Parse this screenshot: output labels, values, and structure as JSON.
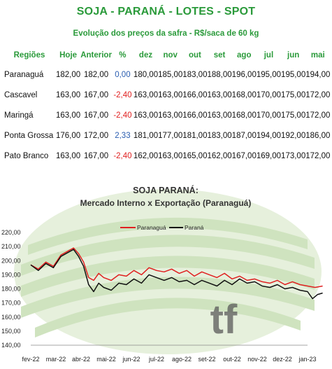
{
  "header": {
    "title": "SOJA - PARANÁ - LOTES - SPOT",
    "subtitle": "Evolução dos preços da safra - R$/saca de 60 kg"
  },
  "table": {
    "columns": [
      "Regiões",
      "Hoje",
      "Anterior",
      "%",
      "dez",
      "nov",
      "out",
      "set",
      "ago",
      "jul",
      "jun",
      "mai"
    ],
    "rows": [
      {
        "regiao": "Paranaguá",
        "hoje": "182,00",
        "anterior": "182,00",
        "pct": "0,00",
        "dez": "180,00",
        "nov": "185,00",
        "out": "183,00",
        "set": "188,00",
        "ago": "196,00",
        "jul": "195,00",
        "jun": "195,00",
        "mai": "194,00"
      },
      {
        "regiao": "Cascavel",
        "hoje": "163,00",
        "anterior": "167,00",
        "pct": "-2,40",
        "dez": "163,00",
        "nov": "163,00",
        "out": "166,00",
        "set": "163,00",
        "ago": "168,00",
        "jul": "170,00",
        "jun": "175,00",
        "mai": "172,00"
      },
      {
        "regiao": "Maringá",
        "hoje": "163,00",
        "anterior": "167,00",
        "pct": "-2,40",
        "dez": "163,00",
        "nov": "163,00",
        "out": "166,00",
        "set": "163,00",
        "ago": "168,00",
        "jul": "170,00",
        "jun": "175,00",
        "mai": "172,00"
      },
      {
        "regiao": "Ponta Grossa",
        "hoje": "176,00",
        "anterior": "172,00",
        "pct": "2,33",
        "dez": "181,00",
        "nov": "177,00",
        "out": "181,00",
        "set": "183,00",
        "ago": "187,00",
        "jul": "194,00",
        "jun": "192,00",
        "mai": "186,00"
      },
      {
        "regiao": "Pato Branco",
        "hoje": "163,00",
        "anterior": "167,00",
        "pct": "-2,40",
        "dez": "162,00",
        "nov": "163,00",
        "out": "165,00",
        "set": "162,00",
        "ago": "167,00",
        "jul": "169,00",
        "jun": "173,00",
        "mai": "172,00"
      }
    ]
  },
  "colors": {
    "green": "#2a9a3a",
    "negative": "#e02020",
    "positive": "#2a5db0",
    "series_paranagua": "#e02020",
    "series_parana": "#111111",
    "watermark": "#cfe3bf"
  },
  "chart_data": {
    "type": "line",
    "title": "SOJA PARANÁ:",
    "subtitle": "Mercado Interno x Exportação (Paranaguá)",
    "ylim": [
      140,
      220
    ],
    "yticks": [
      "140,00",
      "150,00",
      "160,00",
      "170,00",
      "180,00",
      "190,00",
      "200,00",
      "210,00",
      "220,00"
    ],
    "xticks": [
      "fev-22",
      "mar-22",
      "abr-22",
      "mai-22",
      "jun-22",
      "jul-22",
      "ago-22",
      "set-22",
      "out-22",
      "nov-22",
      "dez-22",
      "jan-23"
    ],
    "legend_position": "top",
    "watermark_text": "tf",
    "series": [
      {
        "name": "Paranaguá",
        "points": [
          [
            0,
            197
          ],
          [
            0.3,
            194
          ],
          [
            0.6,
            199
          ],
          [
            0.9,
            196
          ],
          [
            1.2,
            204
          ],
          [
            1.5,
            207
          ],
          [
            1.7,
            209
          ],
          [
            1.9,
            205
          ],
          [
            2.1,
            199
          ],
          [
            2.3,
            188
          ],
          [
            2.5,
            186
          ],
          [
            2.7,
            191
          ],
          [
            2.9,
            188
          ],
          [
            3.2,
            186
          ],
          [
            3.5,
            190
          ],
          [
            3.8,
            189
          ],
          [
            4.1,
            193
          ],
          [
            4.4,
            190
          ],
          [
            4.7,
            195
          ],
          [
            5.0,
            193
          ],
          [
            5.3,
            192
          ],
          [
            5.6,
            194
          ],
          [
            5.9,
            191
          ],
          [
            6.2,
            193
          ],
          [
            6.5,
            189
          ],
          [
            6.8,
            192
          ],
          [
            7.1,
            190
          ],
          [
            7.4,
            188
          ],
          [
            7.7,
            191
          ],
          [
            8.0,
            187
          ],
          [
            8.3,
            189
          ],
          [
            8.6,
            186
          ],
          [
            8.9,
            187
          ],
          [
            9.2,
            185
          ],
          [
            9.5,
            184
          ],
          [
            9.8,
            186
          ],
          [
            10.1,
            183
          ],
          [
            10.4,
            185
          ],
          [
            10.7,
            183
          ],
          [
            11.0,
            182
          ],
          [
            11.3,
            181
          ],
          [
            11.6,
            182
          ]
        ]
      },
      {
        "name": "Paraná",
        "points": [
          [
            0,
            197
          ],
          [
            0.3,
            193
          ],
          [
            0.6,
            198
          ],
          [
            0.9,
            195
          ],
          [
            1.2,
            203
          ],
          [
            1.5,
            206
          ],
          [
            1.7,
            208
          ],
          [
            1.9,
            203
          ],
          [
            2.1,
            196
          ],
          [
            2.3,
            183
          ],
          [
            2.5,
            178
          ],
          [
            2.7,
            184
          ],
          [
            2.9,
            181
          ],
          [
            3.2,
            179
          ],
          [
            3.5,
            184
          ],
          [
            3.8,
            183
          ],
          [
            4.1,
            187
          ],
          [
            4.4,
            184
          ],
          [
            4.7,
            190
          ],
          [
            5.0,
            188
          ],
          [
            5.3,
            186
          ],
          [
            5.6,
            188
          ],
          [
            5.9,
            185
          ],
          [
            6.2,
            186
          ],
          [
            6.5,
            183
          ],
          [
            6.8,
            186
          ],
          [
            7.1,
            184
          ],
          [
            7.4,
            182
          ],
          [
            7.7,
            186
          ],
          [
            8.0,
            183
          ],
          [
            8.3,
            187
          ],
          [
            8.6,
            184
          ],
          [
            8.9,
            185
          ],
          [
            9.2,
            182
          ],
          [
            9.5,
            181
          ],
          [
            9.8,
            183
          ],
          [
            10.1,
            180
          ],
          [
            10.4,
            181
          ],
          [
            10.7,
            179
          ],
          [
            11.0,
            178
          ],
          [
            11.2,
            173
          ],
          [
            11.4,
            176
          ],
          [
            11.6,
            177
          ]
        ]
      }
    ]
  }
}
